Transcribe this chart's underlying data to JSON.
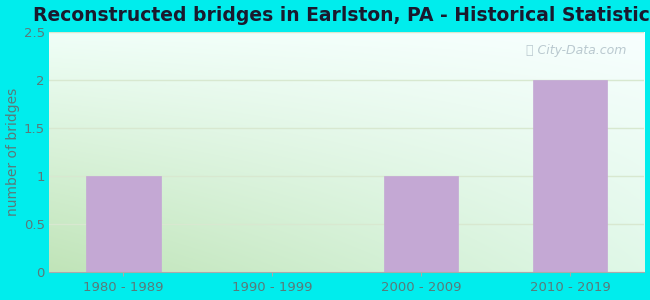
{
  "title": "Reconstructed bridges in Earlston, PA - Historical Statistics",
  "categories": [
    "1980 - 1989",
    "1990 - 1999",
    "2000 - 2009",
    "2010 - 2019"
  ],
  "values": [
    1,
    0,
    1,
    2
  ],
  "bar_color": "#c4a8d4",
  "bar_edge_color": "#c4a8d4",
  "ylabel": "number of bridges",
  "ylim": [
    0,
    2.5
  ],
  "yticks": [
    0,
    0.5,
    1,
    1.5,
    2,
    2.5
  ],
  "outer_bg": "#00eded",
  "title_fontsize": 13.5,
  "axis_label_fontsize": 10,
  "tick_fontsize": 9.5,
  "watermark_text": "City-Data.com",
  "grid_color": "#d8e8d0",
  "title_color": "#1a1a2e",
  "tick_color": "#5a7a7a",
  "ylabel_color": "#5a7a7a",
  "bg_left_bottom": "#c8e8c0",
  "bg_right_top": "#f0fff8"
}
